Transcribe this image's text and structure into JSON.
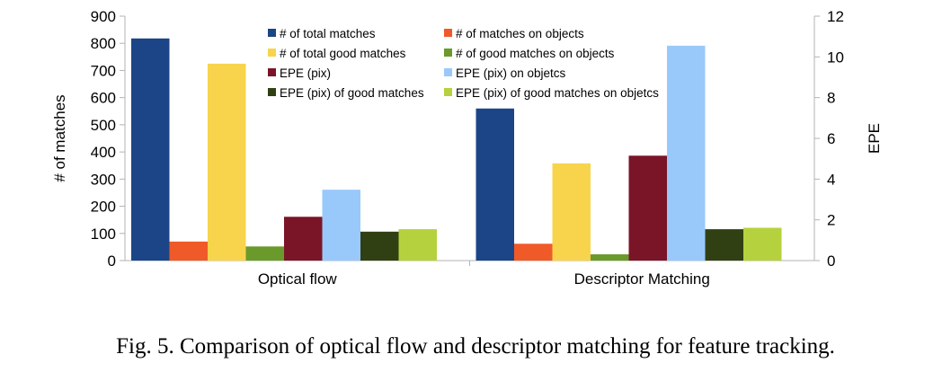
{
  "chart_data": {
    "type": "bar",
    "categories": [
      "Optical flow",
      "Descriptor Matching"
    ],
    "series": [
      {
        "name": "# of total matches",
        "axis": "left",
        "color": "#1c4587",
        "values": [
          818,
          560
        ]
      },
      {
        "name": "# of matches on objects",
        "axis": "left",
        "color": "#f05a28",
        "values": [
          70,
          62
        ]
      },
      {
        "name": "# of total good matches",
        "axis": "left",
        "color": "#f7d44c",
        "values": [
          725,
          358
        ]
      },
      {
        "name": "# of good matches on objects",
        "axis": "left",
        "color": "#6a9a2b",
        "values": [
          52,
          23
        ]
      },
      {
        "name": "EPE (pix)",
        "axis": "right",
        "color": "#7a1528",
        "values": [
          2.15,
          5.15
        ]
      },
      {
        "name": "EPE (pix) on objetcs",
        "axis": "right",
        "color": "#99c9fb",
        "values": [
          3.48,
          10.55
        ]
      },
      {
        "name": "EPE (pix) of good matches",
        "axis": "right",
        "color": "#314013",
        "values": [
          1.42,
          1.54
        ]
      },
      {
        "name": "EPE  (pix) of good matches on objetcs",
        "axis": "right",
        "color": "#b5d13e",
        "values": [
          1.54,
          1.61
        ]
      }
    ],
    "ylabel": "# of matches",
    "y2label": "EPE",
    "ylim": [
      0,
      900
    ],
    "y2lim": [
      0,
      12
    ],
    "yticks": [
      "0",
      "100",
      "200",
      "300",
      "400",
      "500",
      "600",
      "700",
      "800",
      "900"
    ],
    "y2ticks": [
      "0",
      "2",
      "4",
      "6",
      "8",
      "10",
      "12"
    ],
    "legend_position": "top-center",
    "grid": false
  },
  "caption": "Fig. 5.    Comparison of optical flow and descriptor matching for feature tracking."
}
